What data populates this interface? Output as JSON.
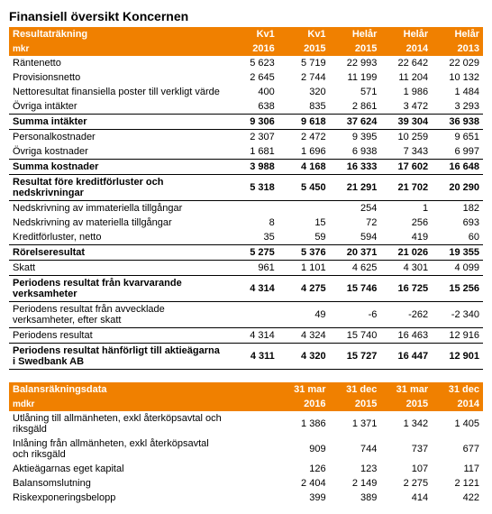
{
  "page_title": "Finansiell översikt Koncernen",
  "income": {
    "header_label": "Resultaträkning",
    "header_sub": "mkr",
    "cols_top": [
      "Kv1",
      "Kv1",
      "Helår",
      "Helår",
      "Helår"
    ],
    "cols_bot": [
      "2016",
      "2015",
      "2015",
      "2014",
      "2013"
    ],
    "r0_label": "Räntenetto",
    "r0_v": [
      "5 623",
      "5 719",
      "22 993",
      "22 642",
      "22 029"
    ],
    "r1_label": "Provisionsnetto",
    "r1_v": [
      "2 645",
      "2 744",
      "11 199",
      "11 204",
      "10 132"
    ],
    "r2_label": "Nettoresultat finansiella poster till verkligt värde",
    "r2_v": [
      "400",
      "320",
      "571",
      "1 986",
      "1 484"
    ],
    "r3_label": "Övriga intäkter",
    "r3_v": [
      "638",
      "835",
      "2 861",
      "3 472",
      "3 293"
    ],
    "r4_label": "Summa intäkter",
    "r4_v": [
      "9 306",
      "9 618",
      "37 624",
      "39 304",
      "36 938"
    ],
    "r5_label": "Personalkostnader",
    "r5_v": [
      "2 307",
      "2 472",
      "9 395",
      "10 259",
      "9 651"
    ],
    "r6_label": "Övriga kostnader",
    "r6_v": [
      "1 681",
      "1 696",
      "6 938",
      "7 343",
      "6 997"
    ],
    "r7_label": "Summa kostnader",
    "r7_v": [
      "3 988",
      "4 168",
      "16 333",
      "17 602",
      "16 648"
    ],
    "r8_label": "Resultat före kreditförluster och nedskrivningar",
    "r8_v": [
      "5 318",
      "5 450",
      "21 291",
      "21 702",
      "20 290"
    ],
    "r9_label": "Nedskrivning av immateriella tillgångar",
    "r9_v": [
      "",
      "",
      "254",
      "1",
      "182"
    ],
    "r10_label": "Nedskrivning av materiella tillgångar",
    "r10_v": [
      "8",
      "15",
      "72",
      "256",
      "693"
    ],
    "r11_label": "Kreditförluster, netto",
    "r11_v": [
      "35",
      "59",
      "594",
      "419",
      "60"
    ],
    "r12_label": "Rörelseresultat",
    "r12_v": [
      "5 275",
      "5 376",
      "20 371",
      "21 026",
      "19 355"
    ],
    "r13_label": "Skatt",
    "r13_v": [
      "961",
      "1 101",
      "4 625",
      "4 301",
      "4 099"
    ],
    "r14_label": "Periodens resultat från kvarvarande verksamheter",
    "r14_v": [
      "4 314",
      "4 275",
      "15 746",
      "16 725",
      "15 256"
    ],
    "r15_label": "Periodens resultat från avvecklade verksamheter, efter skatt",
    "r15_v": [
      "",
      "49",
      "-6",
      "-262",
      "-2 340"
    ],
    "r16_label": "Periodens resultat",
    "r16_v": [
      "4 314",
      "4 324",
      "15 740",
      "16 463",
      "12 916"
    ],
    "r17_label": "Periodens resultat hänförligt till aktieägarna i Swedbank AB",
    "r17_v": [
      "4 311",
      "4 320",
      "15 727",
      "16 447",
      "12 901"
    ]
  },
  "balance": {
    "header_label": "Balansräkningsdata",
    "header_sub": "mdkr",
    "cols_top": [
      "31 mar",
      "31 dec",
      "31 mar",
      "31 dec"
    ],
    "cols_bot": [
      "2016",
      "2015",
      "2015",
      "2014"
    ],
    "b0_label": "Utlåning till allmänheten, exkl återköpsavtal och riksgäld",
    "b0_v": [
      "1 386",
      "1 371",
      "1 342",
      "1 405"
    ],
    "b1_label": "Inlåning från allmänheten, exkl återköpsavtal och riksgäld",
    "b1_v": [
      "909",
      "744",
      "737",
      "677"
    ],
    "b2_label": "Aktieägarnas eget kapital",
    "b2_v": [
      "126",
      "123",
      "107",
      "117"
    ],
    "b3_label": "Balansomslutning",
    "b3_v": [
      "2 404",
      "2 149",
      "2 275",
      "2 121"
    ],
    "b4_label": "Riskexponeringsbelopp",
    "b4_v": [
      "399",
      "389",
      "414",
      "422"
    ]
  },
  "colors": {
    "accent": "#f08000",
    "text": "#000000",
    "bg": "#ffffff"
  }
}
